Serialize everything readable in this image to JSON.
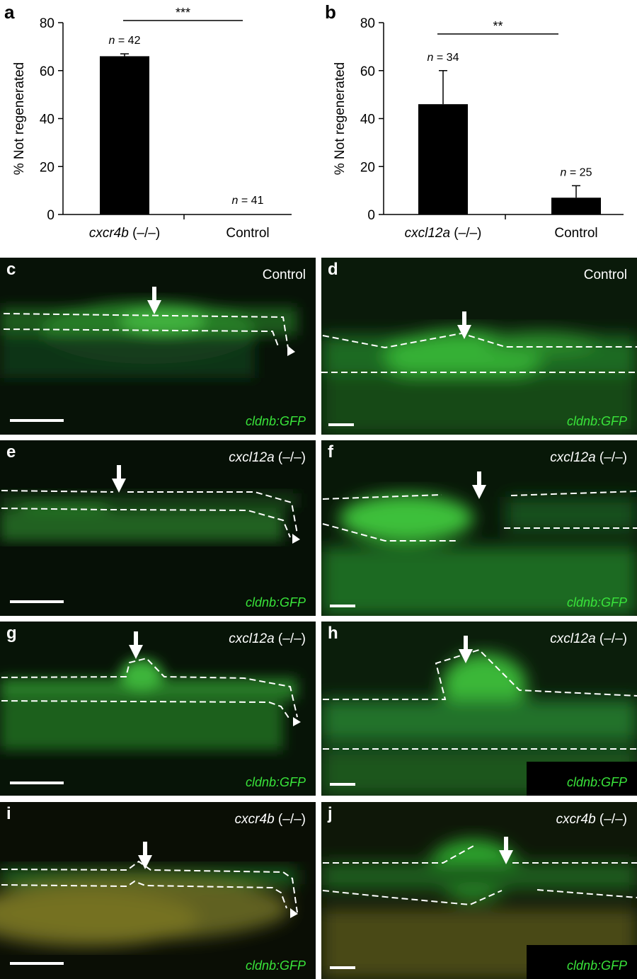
{
  "figure": {
    "panel_letters": {
      "a": "a",
      "b": "b",
      "c": "c",
      "d": "d",
      "e": "e",
      "f": "f",
      "g": "g",
      "h": "h",
      "i": "i",
      "j": "j"
    }
  },
  "chart_data": [
    {
      "type": "bar",
      "panel": "a",
      "categories": [
        "cxcr4b (–/–)",
        "Control"
      ],
      "category_parts": [
        [
          "cxcr4b",
          " (–/–)"
        ],
        [
          "",
          "Control"
        ]
      ],
      "values": [
        66,
        0
      ],
      "error_plus": [
        1,
        0
      ],
      "n_labels": [
        [
          "n",
          " = 42"
        ],
        [
          "n",
          " = 41"
        ]
      ],
      "significance": "***",
      "ylabel": "% Not regenerated",
      "ylim": [
        0,
        80
      ],
      "yticks": [
        0,
        20,
        40,
        60,
        80
      ],
      "bar_color": "#000000"
    },
    {
      "type": "bar",
      "panel": "b",
      "categories": [
        "cxcl12a (–/–)",
        "Control"
      ],
      "category_parts": [
        [
          "cxcl12a",
          " (–/–)"
        ],
        [
          "",
          "Control"
        ]
      ],
      "values": [
        46,
        7
      ],
      "error_plus": [
        14,
        5
      ],
      "n_labels": [
        [
          "n",
          " = 34"
        ],
        [
          "n",
          " = 25"
        ]
      ],
      "significance": "**",
      "ylabel": "% Not regenerated",
      "ylim": [
        0,
        80
      ],
      "yticks": [
        0,
        20,
        40,
        60,
        80
      ],
      "bar_color": "#000000"
    }
  ],
  "micrographs": {
    "c": {
      "condition_gene": "",
      "condition_text": "Control",
      "reporter": "cldnb:GFP"
    },
    "d": {
      "condition_gene": "",
      "condition_text": "Control",
      "reporter": "cldnb:GFP"
    },
    "e": {
      "condition_gene": "cxcl12a",
      "condition_text": " (–/–)",
      "reporter": "cldnb:GFP"
    },
    "f": {
      "condition_gene": "cxcl12a",
      "condition_text": " (–/–)",
      "reporter": "cldnb:GFP"
    },
    "g": {
      "condition_gene": "cxcl12a",
      "condition_text": " (–/–)",
      "reporter": "cldnb:GFP"
    },
    "h": {
      "condition_gene": "cxcl12a",
      "condition_text": " (–/–)",
      "reporter": "cldnb:GFP"
    },
    "i": {
      "condition_gene": "cxcr4b",
      "condition_text": " (–/–)",
      "reporter": "cldnb:GFP"
    },
    "j": {
      "condition_gene": "cxcr4b",
      "condition_text": " (–/–)",
      "reporter": "cldnb:GFP"
    }
  },
  "colors": {
    "gfp_label": "#39e33a",
    "tissue_green": "#2f9a2c",
    "yellow_tissue": "#8a8a2a",
    "background": "#050805"
  }
}
